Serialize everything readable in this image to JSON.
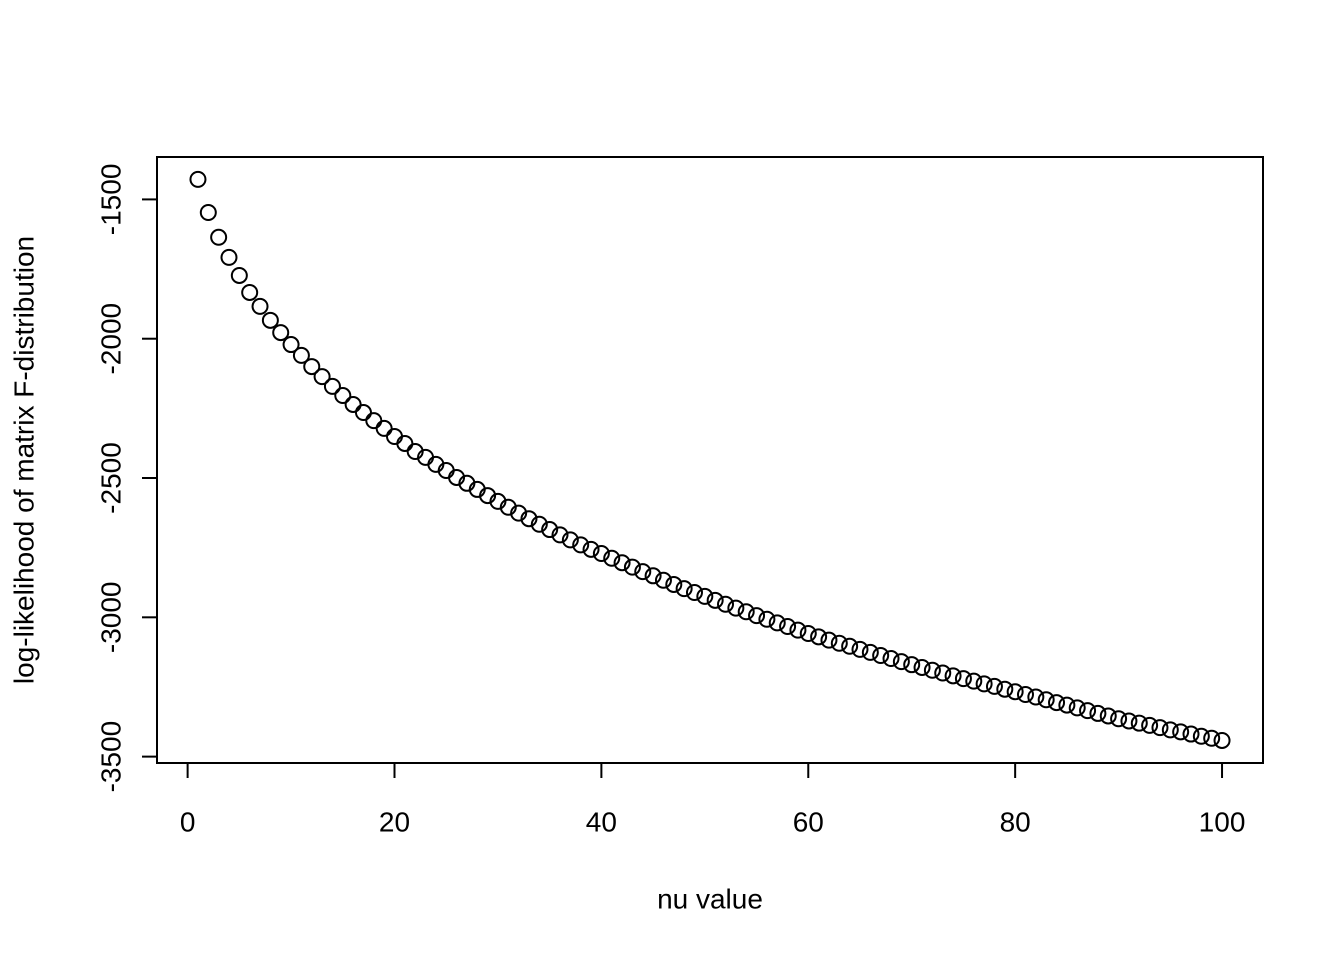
{
  "chart_data": {
    "type": "scatter",
    "x_label": "nu value",
    "y_label": "log-likelihood of matrix F-distribution",
    "color": "#000000",
    "x": [
      1,
      2,
      3,
      4,
      5,
      6,
      7,
      8,
      9,
      10,
      11,
      12,
      13,
      14,
      15,
      16,
      17,
      18,
      19,
      20,
      21,
      22,
      23,
      24,
      25,
      26,
      27,
      28,
      29,
      30,
      31,
      32,
      33,
      34,
      35,
      36,
      37,
      38,
      39,
      40,
      41,
      42,
      43,
      44,
      45,
      46,
      47,
      48,
      49,
      50,
      51,
      52,
      53,
      54,
      55,
      56,
      57,
      58,
      59,
      60,
      61,
      62,
      63,
      64,
      65,
      66,
      67,
      68,
      69,
      70,
      71,
      72,
      73,
      74,
      75,
      76,
      77,
      78,
      79,
      80,
      81,
      82,
      83,
      84,
      85,
      86,
      87,
      88,
      89,
      90,
      91,
      92,
      93,
      94,
      95,
      96,
      97,
      98,
      99,
      100
    ],
    "values": [
      -1428,
      -1547,
      -1636,
      -1708,
      -1773,
      -1834,
      -1884,
      -1934,
      -1978,
      -2021,
      -2060,
      -2100,
      -2136,
      -2171,
      -2204,
      -2236,
      -2265,
      -2294,
      -2322,
      -2351,
      -2376,
      -2405,
      -2426,
      -2451,
      -2473,
      -2498,
      -2519,
      -2541,
      -2563,
      -2584,
      -2605,
      -2626,
      -2646,
      -2666,
      -2685,
      -2704,
      -2722,
      -2740,
      -2756,
      -2771,
      -2788,
      -2804,
      -2820,
      -2836,
      -2851,
      -2867,
      -2882,
      -2897,
      -2911,
      -2925,
      -2939,
      -2953,
      -2967,
      -2980,
      -2994,
      -3007,
      -3020,
      -3033,
      -3046,
      -3058,
      -3070,
      -3082,
      -3093,
      -3104,
      -3115,
      -3126,
      -3137,
      -3148,
      -3159,
      -3170,
      -3180,
      -3190,
      -3200,
      -3210,
      -3220,
      -3229,
      -3239,
      -3248,
      -3258,
      -3267,
      -3277,
      -3286,
      -3296,
      -3306,
      -3315,
      -3325,
      -3335,
      -3345,
      -3354,
      -3364,
      -3372,
      -3380,
      -3388,
      -3396,
      -3404,
      -3411,
      -3419,
      -3427,
      -3434,
      -3442
    ],
    "xlim": [
      -2.96,
      103.96
    ],
    "ylim": [
      -3522.9,
      -1347.8
    ],
    "xticks": [
      0,
      20,
      40,
      60,
      80,
      100
    ],
    "yticks": [
      -3500,
      -3000,
      -2500,
      -2000,
      -1500
    ],
    "grid": false
  }
}
